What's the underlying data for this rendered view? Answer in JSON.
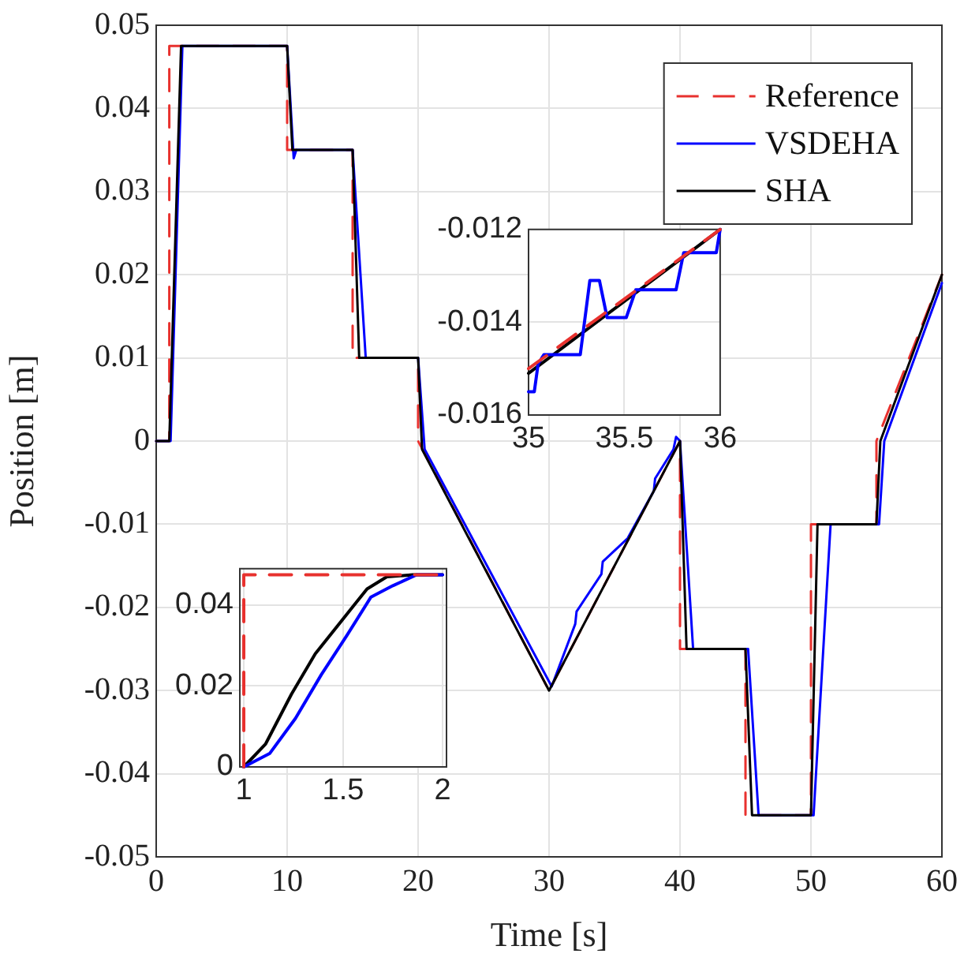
{
  "chart_data": [
    {
      "type": "line",
      "xlabel": "Time [s]",
      "ylabel": "Position [m]",
      "xlim": [
        0,
        60
      ],
      "xticks": [
        0,
        10,
        20,
        30,
        40,
        50,
        60
      ],
      "ylim": [
        -0.05,
        0.05
      ],
      "yticks": [
        -0.05,
        -0.04,
        -0.03,
        -0.02,
        -0.01,
        0,
        0.01,
        0.02,
        0.03,
        0.04,
        0.05
      ],
      "grid": true,
      "legend": "top right",
      "series": [
        {
          "name": "Reference",
          "color": "#e8312e",
          "line_style": "dashed",
          "x": [
            0,
            1,
            1,
            10,
            10,
            15,
            15,
            20,
            20,
            30,
            40,
            40,
            45,
            45,
            50,
            50,
            55,
            55,
            60
          ],
          "values": [
            0,
            0,
            0.0475,
            0.0475,
            0.035,
            0.035,
            0.01,
            0.01,
            0,
            -0.03,
            0,
            -0.025,
            -0.025,
            -0.045,
            -0.045,
            -0.01,
            -0.01,
            0,
            0.02
          ]
        },
        {
          "name": "VSDEHA",
          "color": "#0000ff",
          "line_style": "solid",
          "x": [
            0,
            1.1,
            2,
            10,
            10.5,
            10.7,
            15,
            16,
            20,
            20.5,
            30.2,
            32,
            32.1,
            34,
            34.1,
            36,
            38,
            38.1,
            39.5,
            39.7,
            40,
            41,
            45.2,
            46,
            50.2,
            51.5,
            55.2,
            55.6,
            60
          ],
          "values": [
            0,
            0,
            0.0475,
            0.0475,
            0.034,
            0.035,
            0.035,
            0.01,
            0.01,
            -0.001,
            -0.0295,
            -0.022,
            -0.0205,
            -0.016,
            -0.0145,
            -0.0117,
            -0.006,
            -0.0045,
            -0.001,
            0.0005,
            0,
            -0.025,
            -0.025,
            -0.045,
            -0.045,
            -0.01,
            -0.01,
            0,
            0.019
          ]
        },
        {
          "name": "SHA",
          "color": "#000000",
          "line_style": "solid",
          "x": [
            0,
            1,
            1.9,
            10,
            10.4,
            15,
            15.5,
            20,
            20.3,
            30,
            40,
            40.5,
            45,
            45.5,
            50,
            50.5,
            55,
            55.3,
            60
          ],
          "values": [
            0,
            0,
            0.0475,
            0.0475,
            0.035,
            0.035,
            0.01,
            0.01,
            -0.001,
            -0.03,
            0,
            -0.025,
            -0.025,
            -0.045,
            -0.045,
            -0.01,
            -0.01,
            0,
            0.02
          ]
        }
      ]
    },
    {
      "type": "line",
      "xlim": [
        35,
        36
      ],
      "xticks": [
        35,
        35.5,
        36
      ],
      "ylim": [
        -0.016,
        -0.012
      ],
      "yticks": [
        -0.016,
        -0.014,
        -0.012
      ],
      "grid": true,
      "series": [
        {
          "color": "#e8312e",
          "line_style": "dashed",
          "x": [
            35,
            36
          ],
          "values": [
            -0.015,
            -0.012
          ]
        },
        {
          "color": "#0000ff",
          "line_style": "solid",
          "x": [
            35,
            35.03,
            35.05,
            35.08,
            35.27,
            35.32,
            35.37,
            35.41,
            35.51,
            35.56,
            35.77,
            35.81,
            35.98,
            36
          ],
          "values": [
            -0.0155,
            -0.0155,
            -0.0149,
            -0.0147,
            -0.0147,
            -0.0131,
            -0.0131,
            -0.0139,
            -0.0139,
            -0.0133,
            -0.0133,
            -0.0125,
            -0.0125,
            -0.012
          ]
        },
        {
          "color": "#000000",
          "line_style": "solid",
          "x": [
            35,
            36
          ],
          "values": [
            -0.0151,
            -0.012
          ]
        }
      ]
    },
    {
      "type": "line",
      "xlim": [
        0.98,
        2.02
      ],
      "xticks": [
        1,
        1.5,
        2
      ],
      "ylim": [
        0,
        0.049
      ],
      "yticks": [
        0,
        0.02,
        0.04
      ],
      "grid": true,
      "series": [
        {
          "color": "#e8312e",
          "line_style": "dashed",
          "x": [
            1,
            1,
            2
          ],
          "values": [
            0,
            0.0475,
            0.0475
          ]
        },
        {
          "color": "#0000ff",
          "line_style": "solid",
          "x": [
            1,
            1.13,
            1.26,
            1.39,
            1.52,
            1.64,
            1.75,
            1.87,
            2
          ],
          "values": [
            0,
            0.0033,
            0.012,
            0.0228,
            0.0326,
            0.042,
            0.0448,
            0.0475,
            0.0475
          ]
        },
        {
          "color": "#000000",
          "line_style": "solid",
          "x": [
            1,
            1.11,
            1.24,
            1.36,
            1.49,
            1.62,
            1.72,
            1.85,
            2
          ],
          "values": [
            0,
            0.0057,
            0.018,
            0.028,
            0.036,
            0.044,
            0.047,
            0.0475,
            0.0475
          ]
        }
      ]
    }
  ]
}
